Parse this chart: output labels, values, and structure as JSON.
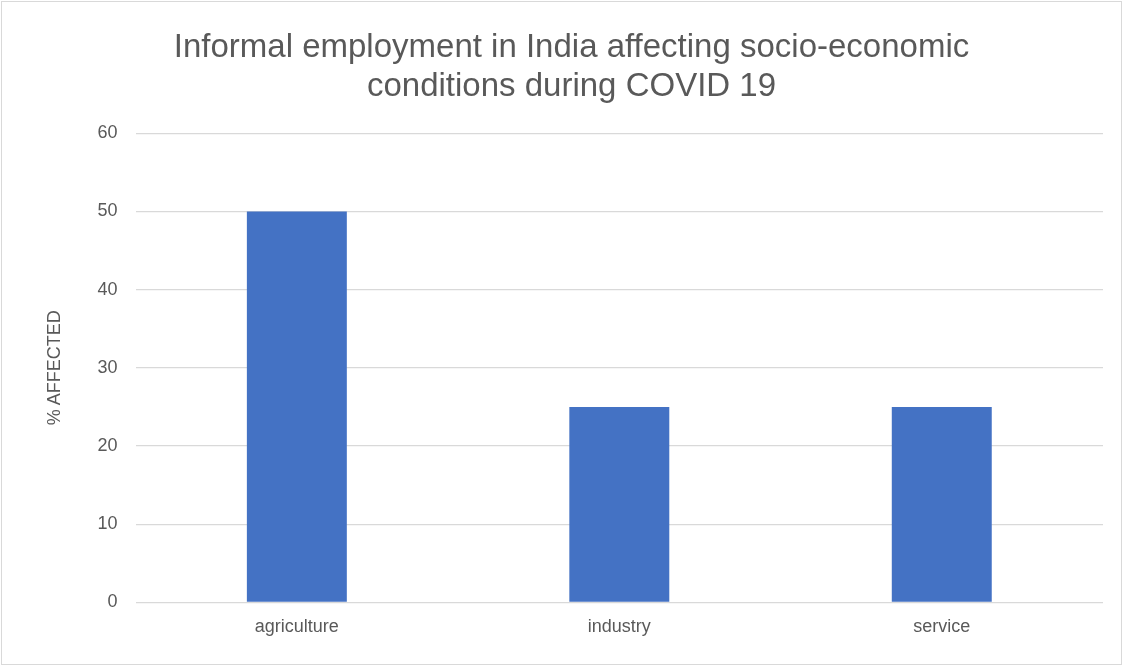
{
  "chart_data": {
    "type": "bar",
    "title": "Informal employment in India affecting socio-economic conditions during COVID 19",
    "ylabel": "% AFFECTED",
    "categories": [
      "agriculture",
      "industry",
      "service"
    ],
    "values": [
      50,
      25,
      25
    ],
    "color": "#4472c4",
    "ylim": [
      0,
      60
    ],
    "yticks": [
      0,
      10,
      20,
      30,
      40,
      50,
      60
    ],
    "grid": "y",
    "legend": false
  }
}
